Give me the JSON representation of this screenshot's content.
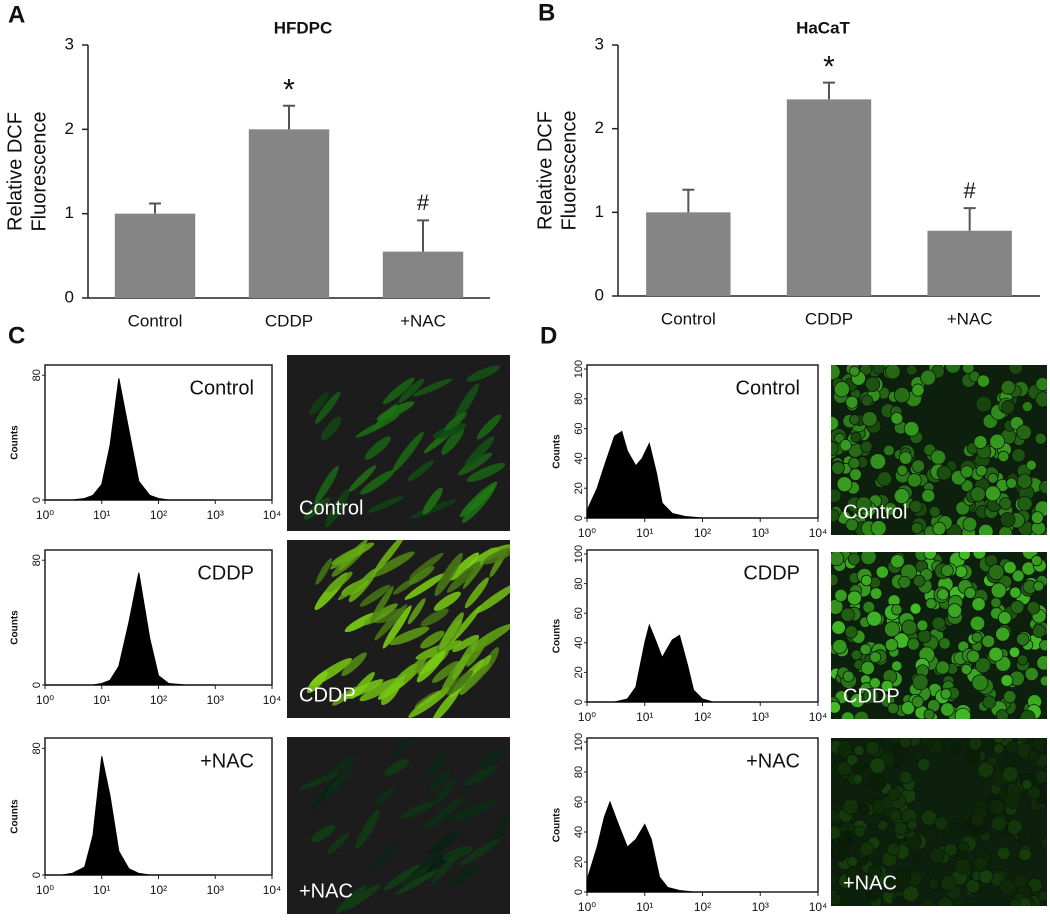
{
  "chart_data": [
    {
      "type": "bar",
      "panel": "A",
      "title": "HFDPC",
      "ylabel": [
        "Relative DCF",
        "Fluorescence"
      ],
      "categories": [
        "Control",
        "CDDP",
        "+NAC"
      ],
      "values": [
        1.0,
        2.0,
        0.55
      ],
      "errors": [
        0.12,
        0.28,
        0.37
      ],
      "markers": [
        null,
        "*",
        "#"
      ],
      "color": "#858585",
      "ylim": [
        0,
        3
      ],
      "yticks": [
        0,
        1,
        2,
        3
      ]
    },
    {
      "type": "bar",
      "panel": "B",
      "title": "HaCaT",
      "ylabel": [
        "Relative DCF",
        "Fluorescence"
      ],
      "categories": [
        "Control",
        "CDDP",
        "+NAC"
      ],
      "values": [
        1.0,
        2.35,
        0.78
      ],
      "errors": [
        0.27,
        0.2,
        0.27
      ],
      "markers": [
        null,
        "*",
        "#"
      ],
      "color": "#858585",
      "ylim": [
        0,
        3
      ],
      "yticks": [
        0,
        1,
        2,
        3
      ]
    },
    {
      "type": "area",
      "panel": "C",
      "label": "Control",
      "ylabel": "Counts",
      "xscale": "log",
      "color": "#000000",
      "x": [
        1,
        2,
        3,
        5,
        7,
        10,
        14,
        20,
        30,
        45,
        70,
        100,
        150,
        300,
        1000
      ],
      "values": [
        0,
        0,
        0,
        1,
        3,
        10,
        35,
        78,
        45,
        12,
        3,
        1,
        0,
        0,
        0
      ],
      "xlim": [
        1,
        10000
      ],
      "ylim": [
        0,
        84
      ],
      "xticks": [
        {
          "value": 1,
          "label": "10⁰"
        },
        {
          "value": 10,
          "label": "10¹"
        },
        {
          "value": 100,
          "label": "10²"
        },
        {
          "value": 1000,
          "label": "10³"
        },
        {
          "value": 10000,
          "label": "10⁴"
        }
      ],
      "yticks": [
        0,
        80
      ]
    },
    {
      "type": "area",
      "label": "CDDP",
      "ylabel": "Counts",
      "xscale": "log",
      "color": "#000000",
      "x": [
        1,
        2,
        3,
        5,
        7,
        10,
        14,
        20,
        30,
        45,
        70,
        100,
        150,
        300,
        1000
      ],
      "values": [
        0,
        0,
        0,
        0,
        0,
        1,
        3,
        12,
        40,
        72,
        30,
        6,
        1,
        0,
        0
      ],
      "xlim": [
        1,
        10000
      ],
      "ylim": [
        0,
        84
      ],
      "xticks": [
        {
          "value": 1,
          "label": "10⁰"
        },
        {
          "value": 10,
          "label": "10¹"
        },
        {
          "value": 100,
          "label": "10²"
        },
        {
          "value": 1000,
          "label": "10³"
        },
        {
          "value": 10000,
          "label": "10⁴"
        }
      ],
      "yticks": [
        0,
        80
      ]
    },
    {
      "type": "area",
      "label": "+NAC",
      "ylabel": "Counts",
      "xscale": "log",
      "color": "#000000",
      "x": [
        1,
        2,
        3,
        5,
        7,
        10,
        14,
        20,
        30,
        45,
        70,
        100,
        150,
        300,
        1000
      ],
      "values": [
        0,
        0,
        1,
        5,
        25,
        75,
        50,
        15,
        4,
        1,
        0,
        0,
        0,
        0,
        0
      ],
      "xlim": [
        1,
        10000
      ],
      "ylim": [
        0,
        84
      ],
      "xticks": [
        {
          "value": 1,
          "label": "10⁰"
        },
        {
          "value": 10,
          "label": "10¹"
        },
        {
          "value": 100,
          "label": "10²"
        },
        {
          "value": 1000,
          "label": "10³"
        },
        {
          "value": 10000,
          "label": "10⁴"
        }
      ],
      "yticks": [
        0,
        80
      ]
    },
    {
      "type": "area",
      "panel": "D",
      "label": "Control",
      "ylabel": "Counts",
      "xscale": "log",
      "color": "#000000",
      "x": [
        1,
        1.5,
        2,
        3,
        4,
        5,
        7,
        9,
        12,
        16,
        20,
        30,
        50,
        100,
        1000
      ],
      "values": [
        5,
        20,
        35,
        55,
        58,
        45,
        35,
        40,
        50,
        30,
        10,
        3,
        1,
        0,
        0
      ],
      "xlim": [
        1,
        10000
      ],
      "ylim": [
        0,
        100
      ],
      "xticks": [
        {
          "value": 1,
          "label": "10⁰"
        },
        {
          "value": 10,
          "label": "10¹"
        },
        {
          "value": 100,
          "label": "10²"
        },
        {
          "value": 1000,
          "label": "10³"
        },
        {
          "value": 10000,
          "label": "10⁴"
        }
      ],
      "yticks": [
        0,
        20,
        40,
        60,
        80,
        100
      ]
    },
    {
      "type": "area",
      "label": "CDDP",
      "ylabel": "Counts",
      "xscale": "log",
      "color": "#000000",
      "x": [
        1,
        3,
        5,
        7,
        10,
        12,
        16,
        20,
        30,
        40,
        55,
        70,
        100,
        150,
        1000
      ],
      "values": [
        0,
        0,
        2,
        10,
        40,
        52,
        40,
        30,
        42,
        45,
        25,
        8,
        2,
        0,
        0
      ],
      "xlim": [
        1,
        10000
      ],
      "ylim": [
        0,
        100
      ],
      "xticks": [
        {
          "value": 1,
          "label": "10⁰"
        },
        {
          "value": 10,
          "label": "10¹"
        },
        {
          "value": 100,
          "label": "10²"
        },
        {
          "value": 1000,
          "label": "10³"
        },
        {
          "value": 10000,
          "label": "10⁴"
        }
      ],
      "yticks": [
        0,
        20,
        40,
        60,
        80,
        100
      ]
    },
    {
      "type": "area",
      "label": "+NAC",
      "ylabel": "Counts",
      "xscale": "log",
      "color": "#000000",
      "x": [
        1,
        1.5,
        2,
        2.5,
        3.5,
        5,
        7,
        10,
        13,
        18,
        25,
        40,
        70,
        150,
        1000
      ],
      "values": [
        8,
        30,
        50,
        60,
        45,
        30,
        35,
        45,
        35,
        10,
        3,
        1,
        0,
        0,
        0
      ],
      "xlim": [
        1,
        10000
      ],
      "ylim": [
        0,
        100
      ],
      "xticks": [
        {
          "value": 1,
          "label": "10⁰"
        },
        {
          "value": 10,
          "label": "10¹"
        },
        {
          "value": 100,
          "label": "10²"
        },
        {
          "value": 1000,
          "label": "10³"
        },
        {
          "value": 10000,
          "label": "10⁴"
        }
      ],
      "yticks": [
        0,
        20,
        40,
        60,
        80,
        100
      ]
    }
  ],
  "micrographs": [
    {
      "label": "Control"
    },
    {
      "label": "CDDP"
    },
    {
      "label": "+NAC"
    },
    {
      "label": "Control"
    },
    {
      "label": "CDDP"
    },
    {
      "label": "+NAC"
    }
  ]
}
